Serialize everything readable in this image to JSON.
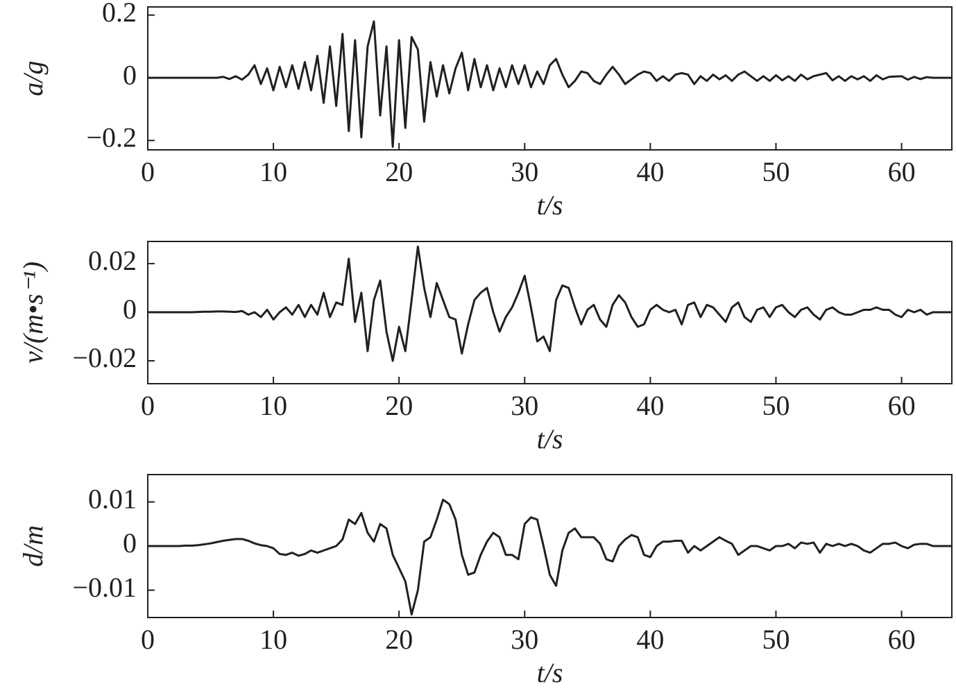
{
  "chart_data": [
    {
      "type": "line",
      "y_label": "a/g",
      "x_label": "t/s",
      "color": "#231f20",
      "xlim": [
        0,
        64
      ],
      "xticks": [
        0,
        10,
        20,
        30,
        40,
        50,
        60
      ],
      "ylim": [
        -0.23,
        0.226
      ],
      "yticks": [
        {
          "value": -0.2,
          "label": "−0.2"
        },
        0,
        0.2
      ],
      "x": [
        0,
        0.5,
        1,
        1.5,
        2,
        2.5,
        3,
        3.5,
        4,
        4.5,
        5,
        5.5,
        6,
        6.5,
        7,
        7.5,
        8,
        8.5,
        9,
        9.5,
        10,
        10.5,
        11,
        11.5,
        12,
        12.5,
        13,
        13.5,
        14,
        14.5,
        15,
        15.5,
        16,
        16.5,
        17,
        17.5,
        18,
        18.5,
        19,
        19.5,
        20,
        20.5,
        21,
        21.5,
        22,
        22.5,
        23,
        23.5,
        24,
        24.5,
        25,
        25.5,
        26,
        26.5,
        27,
        27.5,
        28,
        28.5,
        29,
        29.5,
        30,
        30.5,
        31,
        31.5,
        32,
        32.5,
        33,
        33.5,
        34,
        34.5,
        35,
        35.5,
        36,
        36.5,
        37,
        37.5,
        38,
        38.5,
        39,
        39.5,
        40,
        40.5,
        41,
        41.5,
        42,
        42.5,
        43,
        43.5,
        44,
        44.5,
        45,
        45.5,
        46,
        46.5,
        47,
        47.5,
        48,
        48.5,
        49,
        49.5,
        50,
        50.5,
        51,
        51.5,
        52,
        52.5,
        53,
        53.5,
        54,
        54.5,
        55,
        55.5,
        56,
        56.5,
        57,
        57.5,
        58,
        58.5,
        59,
        59.5,
        60,
        60.5,
        61,
        61.5,
        62,
        62.5,
        63,
        63.5,
        64
      ],
      "values": [
        0,
        0,
        0,
        0,
        0,
        0,
        0,
        0,
        0,
        0,
        0,
        0,
        0.003,
        -0.004,
        0.005,
        -0.006,
        0.01,
        0.04,
        -0.02,
        0.03,
        -0.04,
        0.035,
        -0.03,
        0.04,
        -0.035,
        0.05,
        -0.04,
        0.07,
        -0.08,
        0.1,
        -0.09,
        0.14,
        -0.17,
        0.12,
        -0.19,
        0.1,
        0.18,
        -0.12,
        0.1,
        -0.22,
        0.12,
        -0.16,
        0.13,
        0.09,
        -0.14,
        0.05,
        -0.06,
        0.04,
        -0.05,
        0.03,
        0.08,
        -0.04,
        0.06,
        -0.03,
        0.04,
        -0.04,
        0.03,
        -0.03,
        0.04,
        -0.02,
        0.04,
        -0.03,
        0.02,
        -0.02,
        0.04,
        0.06,
        0.01,
        -0.03,
        -0.01,
        0.02,
        0.015,
        -0.01,
        -0.02,
        0.01,
        0.035,
        0.01,
        -0.02,
        -0.005,
        0.01,
        0.02,
        0.015,
        -0.01,
        0.005,
        -0.01,
        0.01,
        0.015,
        0.01,
        -0.02,
        0.005,
        -0.01,
        0.01,
        -0.005,
        0.008,
        -0.01,
        0.01,
        0.02,
        0.005,
        -0.01,
        0.005,
        -0.01,
        0.008,
        -0.008,
        0.005,
        -0.01,
        0.01,
        -0.005,
        0.005,
        0.01,
        0.015,
        -0.008,
        0.005,
        -0.01,
        0.005,
        -0.005,
        0.005,
        -0.01,
        0.008,
        -0.005,
        0.003,
        0.004,
        0.005,
        -0.006,
        0.003,
        -0.004,
        0.002,
        0,
        0,
        0,
        0
      ]
    },
    {
      "type": "line",
      "y_label": "v/(m•s⁻¹)",
      "x_label": "t/s",
      "color": "#231f20",
      "xlim": [
        0,
        64
      ],
      "xticks": [
        0,
        10,
        20,
        30,
        40,
        50,
        60
      ],
      "ylim": [
        -0.0294,
        0.0291
      ],
      "yticks": [
        {
          "value": -0.02,
          "label": "−0.02"
        },
        0,
        0.02
      ],
      "x": [
        0,
        0.5,
        1,
        1.5,
        2,
        2.5,
        3,
        3.5,
        4,
        4.5,
        5,
        5.5,
        6,
        6.5,
        7,
        7.5,
        8,
        8.5,
        9,
        9.5,
        10,
        10.5,
        11,
        11.5,
        12,
        12.5,
        13,
        13.5,
        14,
        14.5,
        15,
        15.5,
        16,
        16.5,
        17,
        17.5,
        18,
        18.5,
        19,
        19.5,
        20,
        20.5,
        21,
        21.5,
        22,
        22.5,
        23,
        23.5,
        24,
        24.5,
        25,
        25.5,
        26,
        26.5,
        27,
        27.5,
        28,
        28.5,
        29,
        29.5,
        30,
        30.5,
        31,
        31.5,
        32,
        32.5,
        33,
        33.5,
        34,
        34.5,
        35,
        35.5,
        36,
        36.5,
        37,
        37.5,
        38,
        38.5,
        39,
        39.5,
        40,
        40.5,
        41,
        41.5,
        42,
        42.5,
        43,
        43.5,
        44,
        44.5,
        45,
        45.5,
        46,
        46.5,
        47,
        47.5,
        48,
        48.5,
        49,
        49.5,
        50,
        50.5,
        51,
        51.5,
        52,
        52.5,
        53,
        53.5,
        54,
        54.5,
        55,
        55.5,
        56,
        56.5,
        57,
        57.5,
        58,
        58.5,
        59,
        59.5,
        60,
        60.5,
        61,
        61.5,
        62,
        62.5,
        63,
        63.5,
        64
      ],
      "values": [
        0,
        0,
        0,
        0,
        0,
        0,
        0,
        0,
        0.0001,
        0.0002,
        0.0002,
        0.0003,
        0.0003,
        0.0002,
        0.0001,
        0.0005,
        -0.001,
        0,
        -0.002,
        0.001,
        -0.003,
        0,
        0.002,
        -0.001,
        0.003,
        -0.002,
        0.003,
        -0.001,
        0.008,
        -0.002,
        0.004,
        0.003,
        0.022,
        -0.004,
        0.008,
        -0.016,
        0.005,
        0.013,
        -0.008,
        -0.02,
        -0.006,
        -0.016,
        0.005,
        0.027,
        0.01,
        -0.002,
        0.012,
        0.005,
        -0.002,
        -0.003,
        -0.017,
        -0.005,
        0.005,
        0.008,
        0.01,
        0,
        -0.008,
        -0.002,
        0.002,
        0.008,
        0.015,
        0.002,
        -0.012,
        -0.01,
        -0.016,
        0.005,
        0.011,
        0.01,
        0.002,
        -0.005,
        0.001,
        0.003,
        -0.003,
        -0.006,
        0.003,
        0.007,
        0.004,
        -0.002,
        -0.006,
        -0.005,
        0.001,
        0.003,
        0.001,
        0,
        0.001,
        -0.005,
        0.003,
        0.004,
        -0.002,
        0.003,
        0.002,
        -0.001,
        -0.004,
        0.002,
        0.004,
        -0.002,
        -0.004,
        0.001,
        0.002,
        -0.002,
        0.002,
        0.003,
        0,
        -0.002,
        0.001,
        0.002,
        -0.001,
        -0.003,
        0.001,
        0.002,
        0,
        -0.001,
        -0.001,
        0,
        0.001,
        0.001,
        0.002,
        0.001,
        0.001,
        -0.001,
        -0.002,
        0.001,
        0,
        0.001,
        -0.001,
        0,
        0,
        0,
        0
      ]
    },
    {
      "type": "line",
      "y_label": "d/m",
      "x_label": "t/s",
      "color": "#231f20",
      "xlim": [
        0,
        64
      ],
      "xticks": [
        0,
        10,
        20,
        30,
        40,
        50,
        60
      ],
      "ylim": [
        -0.0162,
        0.0162
      ],
      "yticks": [
        {
          "value": -0.01,
          "label": "−0.01"
        },
        0,
        0.01
      ],
      "x": [
        0,
        0.5,
        1,
        1.5,
        2,
        2.5,
        3,
        3.5,
        4,
        4.5,
        5,
        5.5,
        6,
        6.5,
        7,
        7.5,
        8,
        8.5,
        9,
        9.5,
        10,
        10.5,
        11,
        11.5,
        12,
        12.5,
        13,
        13.5,
        14,
        14.5,
        15,
        15.5,
        16,
        16.5,
        17,
        17.5,
        18,
        18.5,
        19,
        19.5,
        20,
        20.5,
        21,
        21.5,
        22,
        22.5,
        23,
        23.5,
        24,
        24.5,
        25,
        25.5,
        26,
        26.5,
        27,
        27.5,
        28,
        28.5,
        29,
        29.5,
        30,
        30.5,
        31,
        31.5,
        32,
        32.5,
        33,
        33.5,
        34,
        34.5,
        35,
        35.5,
        36,
        36.5,
        37,
        37.5,
        38,
        38.5,
        39,
        39.5,
        40,
        40.5,
        41,
        41.5,
        42,
        42.5,
        43,
        43.5,
        44,
        44.5,
        45,
        45.5,
        46,
        46.5,
        47,
        47.5,
        48,
        48.5,
        49,
        49.5,
        50,
        50.5,
        51,
        51.5,
        52,
        52.5,
        53,
        53.5,
        54,
        54.5,
        55,
        55.5,
        56,
        56.5,
        57,
        57.5,
        58,
        58.5,
        59,
        59.5,
        60,
        60.5,
        61,
        61.5,
        62,
        62.5,
        63,
        63.5,
        64
      ],
      "values": [
        0,
        0,
        0,
        0,
        0,
        0,
        0.0001,
        0.0001,
        0.0002,
        0.0004,
        0.0006,
        0.0009,
        0.0012,
        0.0014,
        0.0016,
        0.0016,
        0.0012,
        0.0006,
        0.0002,
        0,
        -0.0005,
        -0.0018,
        -0.002,
        -0.0015,
        -0.0022,
        -0.0018,
        -0.001,
        -0.0015,
        -0.001,
        -0.0005,
        0,
        0.0015,
        0.006,
        0.005,
        0.0075,
        0.003,
        0.001,
        0.005,
        0.004,
        -0.002,
        -0.005,
        -0.008,
        -0.0155,
        -0.01,
        0.001,
        0.002,
        0.006,
        0.0105,
        0.0095,
        0.006,
        -0.002,
        -0.0065,
        -0.006,
        -0.002,
        0.001,
        0.003,
        0.002,
        -0.002,
        -0.002,
        -0.003,
        0.005,
        0.0065,
        0.006,
        0,
        -0.0065,
        -0.009,
        -0.001,
        0.003,
        0.004,
        0.002,
        0.002,
        0.002,
        0.0005,
        -0.003,
        -0.0035,
        0,
        0.0015,
        0.0025,
        0.002,
        -0.002,
        -0.0025,
        0,
        0.001,
        0.001,
        0.0012,
        0.0012,
        -0.0015,
        0,
        -0.001,
        0,
        0.001,
        0.002,
        0.0012,
        0.0005,
        -0.002,
        -0.001,
        0,
        0,
        -0.0005,
        -0.001,
        0,
        0,
        0.0005,
        -0.0005,
        0.0008,
        0.0005,
        0.0008,
        -0.0015,
        0.0005,
        0,
        0.0005,
        0,
        0.0005,
        0,
        -0.001,
        -0.0015,
        -0.0005,
        0.0005,
        0.0005,
        0.0008,
        0,
        -0.0005,
        0.0003,
        0.0005,
        0.0005,
        0,
        0,
        0,
        0
      ]
    }
  ]
}
